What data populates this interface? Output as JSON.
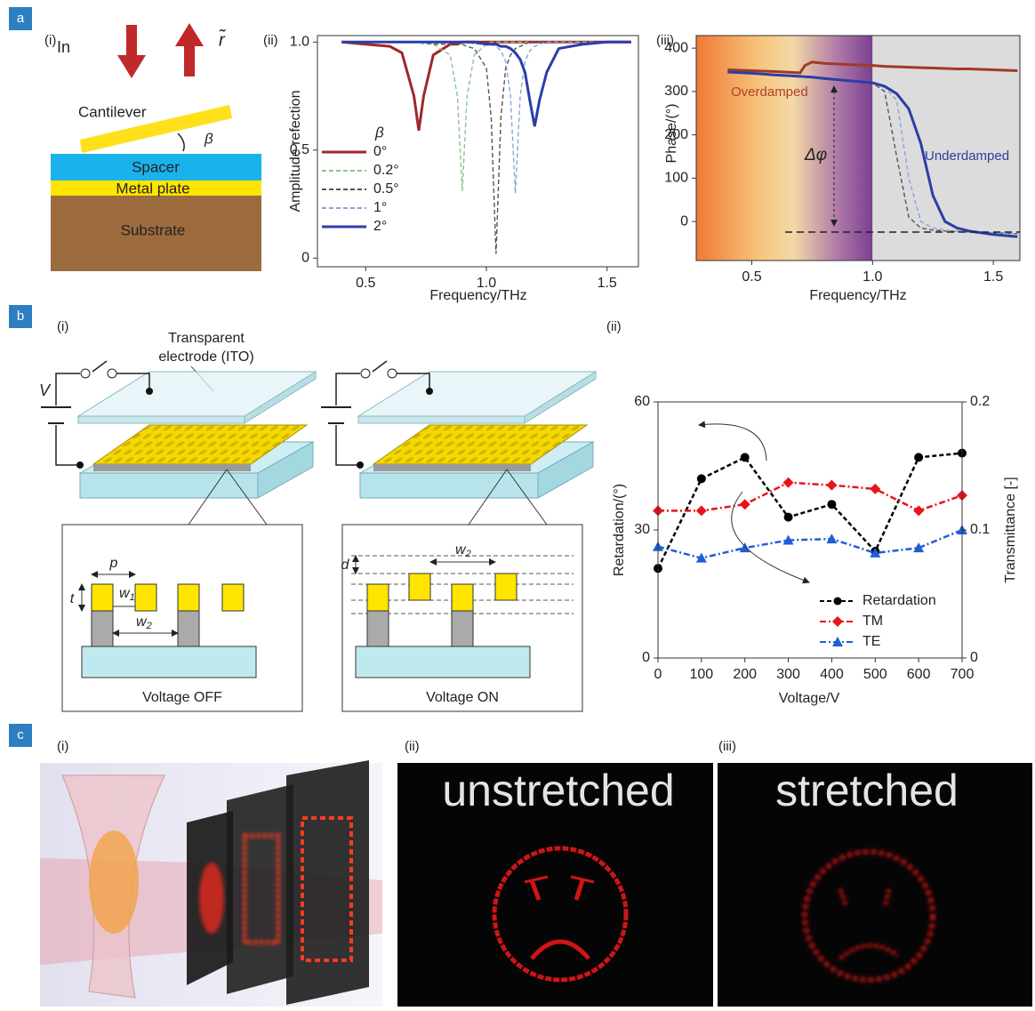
{
  "panel_a": {
    "label": "a",
    "diagram": {
      "sublabel": "(i)",
      "incident": "In",
      "reflected": "r̃",
      "cantilever": "Cantilever",
      "angle": "β",
      "layers": [
        "Spacer",
        "Metal plate",
        "Substrate"
      ]
    }
  },
  "panel_b": {
    "label": "b",
    "diagram": {
      "sublabel": "(i)",
      "electrode": [
        "Transparent",
        "electrode (ITO)"
      ],
      "voltage": "V",
      "insets": [
        {
          "caption": "Voltage OFF",
          "p": "p",
          "t": "t",
          "w1": {
            "text": "w",
            "sub": "1"
          },
          "w2": {
            "text": "w",
            "sub": "2"
          }
        },
        {
          "caption": "Voltage ON",
          "d": "d",
          "w2": {
            "text": "w",
            "sub": "2"
          }
        }
      ]
    }
  },
  "panel_c": {
    "label": "c",
    "sublabels": [
      "(i)",
      "(ii)",
      "(iii)"
    ],
    "captions": [
      "unstretched",
      "stretched"
    ]
  },
  "chart_data": [
    {
      "type": "line",
      "panel_label": "(ii)",
      "xlabel": "Frequency/THz",
      "ylabel": "Amplitude refection",
      "legend_title": "β",
      "x": [
        0.4,
        0.5,
        0.6,
        0.65,
        0.7,
        0.72,
        0.74,
        0.78,
        0.85,
        0.88,
        0.9,
        0.92,
        0.95,
        1.0,
        1.02,
        1.04,
        1.06,
        1.08,
        1.1,
        1.12,
        1.14,
        1.16,
        1.18,
        1.2,
        1.22,
        1.25,
        1.3,
        1.4,
        1.5,
        1.6
      ],
      "series": [
        {
          "name": "0°",
          "color": "#a0282a",
          "style": "solid",
          "values": [
            1.0,
            0.99,
            0.98,
            0.95,
            0.75,
            0.59,
            0.75,
            0.94,
            0.99,
            0.99,
            1.0,
            1.0,
            1.0,
            1.0,
            1.0,
            1.0,
            1.0,
            1.0,
            1.0,
            1.0,
            1.0,
            1.0,
            1.0,
            1.0,
            1.0,
            1.0,
            1.0,
            1.0,
            1.0,
            1.0
          ]
        },
        {
          "name": "0.2°",
          "color": "#8cc48c",
          "style": "dashed",
          "values": [
            1.0,
            1.0,
            1.0,
            1.0,
            1.0,
            1.0,
            0.99,
            0.99,
            0.94,
            0.75,
            0.31,
            0.75,
            0.94,
            0.99,
            1.0,
            1.0,
            1.0,
            1.0,
            1.0,
            1.0,
            1.0,
            1.0,
            1.0,
            1.0,
            1.0,
            1.0,
            1.0,
            1.0,
            1.0,
            1.0
          ]
        },
        {
          "name": "0.5°",
          "color": "#555555",
          "style": "dashed",
          "values": [
            1.0,
            1.0,
            1.0,
            1.0,
            1.0,
            1.0,
            1.0,
            0.99,
            0.99,
            0.99,
            0.99,
            0.98,
            0.97,
            0.88,
            0.65,
            0.02,
            0.65,
            0.88,
            0.94,
            0.97,
            0.98,
            0.99,
            1.0,
            1.0,
            1.0,
            1.0,
            1.0,
            1.0,
            1.0,
            1.0
          ]
        },
        {
          "name": "1°",
          "color": "#86a7d8",
          "style": "dashed",
          "values": [
            1.0,
            1.0,
            1.0,
            1.0,
            1.0,
            1.0,
            1.0,
            1.0,
            1.0,
            1.0,
            1.0,
            1.0,
            0.99,
            0.99,
            0.99,
            0.98,
            0.96,
            0.91,
            0.75,
            0.3,
            0.75,
            0.91,
            0.96,
            0.98,
            0.99,
            1.0,
            1.0,
            1.0,
            1.0,
            1.0
          ]
        },
        {
          "name": "2°",
          "color": "#2b3ea8",
          "style": "solid",
          "values": [
            1.0,
            1.0,
            1.0,
            1.0,
            1.0,
            1.0,
            1.0,
            1.0,
            1.0,
            1.0,
            1.0,
            1.0,
            1.0,
            0.99,
            0.99,
            0.99,
            0.98,
            0.98,
            0.97,
            0.95,
            0.92,
            0.86,
            0.73,
            0.61,
            0.73,
            0.86,
            0.97,
            0.99,
            1.0,
            1.0
          ]
        }
      ],
      "xlim": [
        0.3,
        1.63
      ],
      "ylim": [
        -0.04,
        1.03
      ],
      "xticks": [
        0.5,
        {
          "value": 1,
          "label": "1.0"
        },
        1.5
      ],
      "yticks": [
        0,
        0.5,
        {
          "value": 1,
          "label": "1.0"
        }
      ]
    },
    {
      "type": "line",
      "panel_label": "(iii)",
      "xlabel": "Frequency/THz",
      "ylabel": "Phase/(°)",
      "annotations": [
        "Overdamped",
        "Underdamped",
        "Δφ"
      ],
      "shade_split": 1.0,
      "x": [
        0.4,
        0.5,
        0.6,
        0.7,
        0.72,
        0.75,
        0.8,
        0.9,
        1.0,
        1.05,
        1.1,
        1.15,
        1.2,
        1.25,
        1.3,
        1.35,
        1.4,
        1.5,
        1.6
      ],
      "series": [
        {
          "color": "#a03a2a",
          "style": "solid",
          "values": [
            350,
            348,
            346,
            343,
            360,
            368,
            365,
            362,
            360,
            358,
            357,
            356,
            355,
            354,
            353,
            352,
            352,
            350,
            348
          ]
        },
        {
          "color": "#555555",
          "style": "dashed",
          "values": [
            345,
            342,
            338,
            335,
            334,
            333,
            330,
            325,
            320,
            300,
            150,
            10,
            -15,
            -20,
            -22,
            -23,
            -24,
            -26,
            -28
          ]
        },
        {
          "color": "#86a7d8",
          "style": "dashed",
          "values": [
            345,
            342,
            338,
            335,
            334,
            333,
            330,
            325,
            320,
            310,
            280,
            100,
            0,
            -15,
            -20,
            -22,
            -24,
            -26,
            -28
          ]
        },
        {
          "color": "#2b3ea8",
          "style": "solid",
          "values": [
            345,
            342,
            338,
            335,
            334,
            333,
            330,
            325,
            320,
            312,
            295,
            260,
            180,
            60,
            0,
            -15,
            -22,
            -30,
            -35
          ]
        }
      ],
      "xlim": [
        0.27,
        1.61
      ],
      "ylim": [
        -90,
        429
      ],
      "xticks": [
        0.5,
        {
          "value": 1,
          "label": "1.0"
        },
        1.5
      ],
      "yticks": [
        0,
        100,
        200,
        300,
        400
      ]
    },
    {
      "type": "line",
      "panel_label": "(ii)",
      "xlabel": "Voltage/V",
      "ylabel": "Retardation/(°)",
      "y2label": "Transmittance [-]",
      "x": [
        0,
        100,
        200,
        300,
        400,
        500,
        600,
        700
      ],
      "series": [
        {
          "name": "Retardation",
          "color": "#000000",
          "style": "dashed",
          "marker": "circle",
          "values": [
            21,
            42,
            47,
            33,
            36,
            25,
            47,
            48
          ]
        },
        {
          "name": "TM",
          "color": "#e8141c",
          "style": "dashdot",
          "marker": "diamond",
          "axis": "y2",
          "values": [
            0.115,
            0.115,
            0.12,
            0.137,
            0.135,
            0.132,
            0.115,
            0.127
          ]
        },
        {
          "name": "TE",
          "color": "#1f5fd6",
          "style": "dashdot",
          "marker": "triangle",
          "axis": "y2",
          "values": [
            0.087,
            0.078,
            0.086,
            0.092,
            0.093,
            0.082,
            0.086,
            0.1
          ]
        }
      ],
      "xlim": [
        0,
        700
      ],
      "ylim": [
        0,
        60
      ],
      "y2lim": [
        0,
        0.2
      ],
      "xticks": [
        0,
        100,
        200,
        300,
        400,
        500,
        600,
        700
      ],
      "yticks": [
        0,
        30,
        60
      ],
      "y2ticks": [
        0,
        0.1,
        0.2
      ]
    }
  ]
}
